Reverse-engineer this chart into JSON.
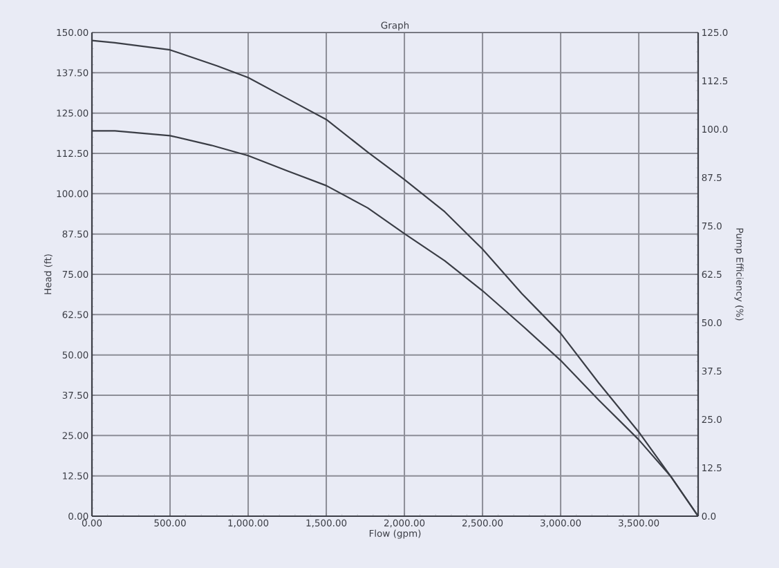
{
  "chart_data": {
    "type": "line",
    "title": "Graph",
    "xlabel": "Flow (gpm)",
    "ylabel": "Head (ft)",
    "y2label": "Pump Efficiency (%)",
    "series": [
      {
        "color": "#3a3d45",
        "x": [
          0,
          147,
          500,
          803,
          1000,
          1250,
          1500,
          1765,
          2000,
          2258,
          2500,
          2752,
          3000,
          3244,
          3500,
          3707,
          3880
        ],
        "values": [
          147.5,
          146.8,
          144.6,
          139.6,
          136.0,
          129.5,
          123.0,
          112.9,
          104.4,
          94.4,
          82.8,
          69.0,
          56.7,
          41.3,
          26.1,
          12.2,
          0
        ]
      },
      {
        "color": "#3a3d45",
        "x": [
          0,
          147,
          500,
          765,
          1000,
          1250,
          1500,
          1765,
          2000,
          2258,
          2500,
          2752,
          3000,
          3244,
          3500,
          3707,
          3880
        ],
        "values": [
          119.5,
          119.5,
          118.0,
          115.0,
          111.8,
          107.1,
          102.5,
          95.6,
          87.6,
          79.2,
          69.9,
          59.2,
          48.3,
          36.0,
          23.7,
          12.2,
          0
        ]
      }
    ],
    "xlim": [
      0,
      3880
    ],
    "xticks": [
      {
        "value": 0,
        "label": "0.00"
      },
      {
        "value": 500,
        "label": "500.00"
      },
      {
        "value": 1000,
        "label": "1,000.00"
      },
      {
        "value": 1500,
        "label": "1,500.00"
      },
      {
        "value": 2000,
        "label": "2,000.00"
      },
      {
        "value": 2500,
        "label": "2,500.00"
      },
      {
        "value": 3000,
        "label": "3,000.00"
      },
      {
        "value": 3500,
        "label": "3,500.00"
      }
    ],
    "ylim": [
      0,
      150
    ],
    "yticks": [
      {
        "value": 0,
        "label": "0.00"
      },
      {
        "value": 12.5,
        "label": "12.50"
      },
      {
        "value": 25,
        "label": "25.00"
      },
      {
        "value": 37.5,
        "label": "37.50"
      },
      {
        "value": 50,
        "label": "50.00"
      },
      {
        "value": 62.5,
        "label": "62.50"
      },
      {
        "value": 75,
        "label": "75.00"
      },
      {
        "value": 87.5,
        "label": "87.50"
      },
      {
        "value": 100,
        "label": "100.00"
      },
      {
        "value": 112.5,
        "label": "112.50"
      },
      {
        "value": 125,
        "label": "125.00"
      },
      {
        "value": 137.5,
        "label": "137.50"
      },
      {
        "value": 150,
        "label": "150.00"
      }
    ],
    "y2lim": [
      0,
      125
    ],
    "y2ticks": [
      {
        "value": 0,
        "label": "0.0"
      },
      {
        "value": 12.5,
        "label": "12.5"
      },
      {
        "value": 25,
        "label": "25.0"
      },
      {
        "value": 37.5,
        "label": "37.5"
      },
      {
        "value": 50,
        "label": "50.0"
      },
      {
        "value": 62.5,
        "label": "62.5"
      },
      {
        "value": 75,
        "label": "75.0"
      },
      {
        "value": 87.5,
        "label": "87.5"
      },
      {
        "value": 100,
        "label": "100.0"
      },
      {
        "value": 112.5,
        "label": "112.5"
      },
      {
        "value": 125,
        "label": "125.0"
      }
    ],
    "grid": true,
    "marker": "none",
    "line_style": "solid"
  }
}
